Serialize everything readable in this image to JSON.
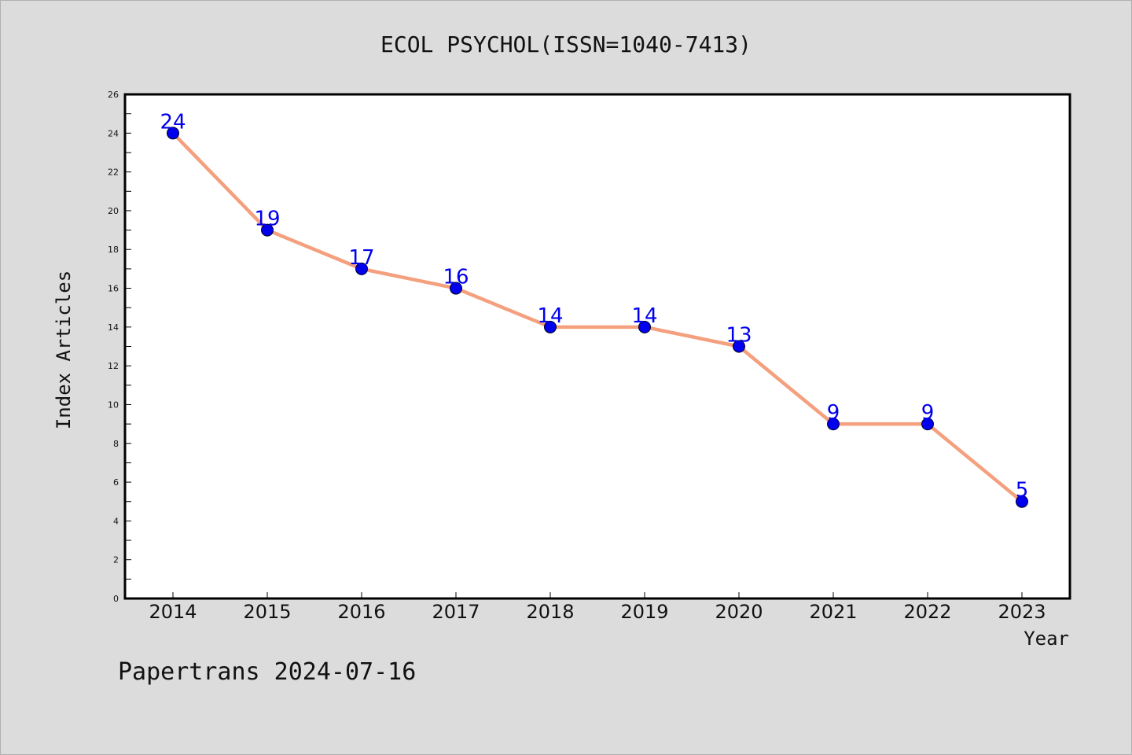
{
  "chart_data": {
    "type": "line",
    "title": "ECOL PSYCHOL(ISSN=1040-7413)",
    "xlabel": "Year",
    "ylabel": "Index Articles",
    "categories": [
      "2014",
      "2015",
      "2016",
      "2017",
      "2018",
      "2019",
      "2020",
      "2021",
      "2022",
      "2023"
    ],
    "values": [
      24,
      19,
      17,
      16,
      14,
      14,
      13,
      9,
      9,
      5
    ],
    "ylim": [
      0,
      26
    ],
    "yticks": [
      0,
      2,
      4,
      6,
      8,
      10,
      12,
      14,
      16,
      18,
      20,
      22,
      24,
      26
    ],
    "grid": false,
    "line_color": "#f4a07e",
    "marker_color": "#0000ee",
    "label_color": "#0000ee",
    "data_labels": true
  },
  "footer": {
    "text": "Papertrans 2024-07-16"
  }
}
